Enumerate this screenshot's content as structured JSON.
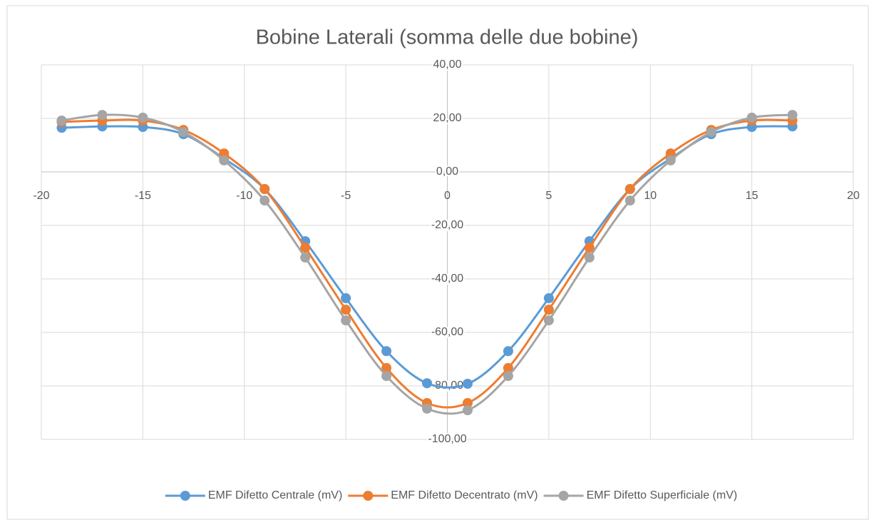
{
  "chart_data": {
    "type": "line",
    "title": "Bobine Laterali (somma delle due bobine)",
    "x": [
      -19,
      -17,
      -15,
      -13,
      -11,
      -9,
      -7,
      -5,
      -3,
      -1,
      1,
      3,
      5,
      7,
      9,
      11,
      13,
      15,
      17
    ],
    "series": [
      {
        "name": "EMF Difetto Centrale (mV)",
        "color": "#5b9bd5",
        "values": [
          16.5,
          17,
          16.8,
          14.1,
          5,
          -6.4,
          -25.9,
          -47.2,
          -67,
          -79,
          -79.2,
          -67,
          -47.2,
          -25.9,
          -6.4,
          5,
          14.1,
          16.8,
          17
        ]
      },
      {
        "name": "EMF Difetto Decentrato (mV)",
        "color": "#ed7d31",
        "values": [
          18.7,
          19.2,
          19.2,
          15.7,
          6.9,
          -6.4,
          -28.3,
          -51.5,
          -73.3,
          -86.4,
          -86.4,
          -73.3,
          -51.5,
          -28.3,
          -6.4,
          6.9,
          15.7,
          19.2,
          19.2
        ]
      },
      {
        "name": "EMF Difetto Superficiale (mV)",
        "color": "#a5a5a5",
        "values": [
          19.2,
          21.3,
          20.3,
          14.9,
          4.3,
          -10.7,
          -32,
          -55.5,
          -76.3,
          -88.5,
          -89.1,
          -76.3,
          -55.5,
          -32,
          -10.7,
          4.3,
          14.9,
          20.3,
          21.3
        ]
      }
    ],
    "xlim": [
      -20,
      20
    ],
    "xticks": [
      -20,
      -15,
      -10,
      -5,
      0,
      5,
      10,
      15,
      20
    ],
    "ylim": [
      -100,
      40
    ],
    "yticks": [
      {
        "value": -100,
        "label": "-100,00"
      },
      {
        "value": -80,
        "label": "-80,00"
      },
      {
        "value": -60,
        "label": "-60,00"
      },
      {
        "value": -40,
        "label": "-40,00"
      },
      {
        "value": -20,
        "label": "-20,00"
      },
      {
        "value": 0,
        "label": "0,00"
      },
      {
        "value": 20,
        "label": "20,00"
      },
      {
        "value": 40,
        "label": "40,00"
      }
    ],
    "grid": true,
    "smooth": true,
    "legend": "bottom"
  }
}
